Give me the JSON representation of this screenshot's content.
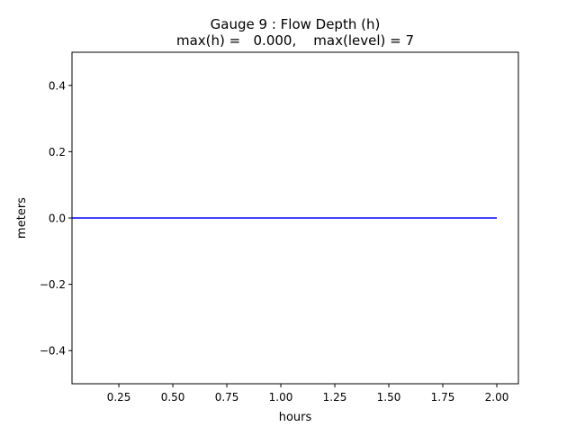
{
  "chart_data": {
    "type": "line",
    "title": "Gauge 9 : Flow Depth (h)",
    "subtitle": "max(h) =   0.000,    max(level) = 7",
    "xlabel": "hours",
    "ylabel": "meters",
    "xlim": [
      0.033,
      2.1
    ],
    "ylim": [
      -0.5,
      0.5
    ],
    "xticks": [
      0.25,
      0.5,
      0.75,
      1.0,
      1.25,
      1.5,
      1.75,
      2.0
    ],
    "xtick_labels": [
      "0.25",
      "0.50",
      "0.75",
      "1.00",
      "1.25",
      "1.50",
      "1.75",
      "2.00"
    ],
    "yticks": [
      -0.4,
      -0.2,
      0.0,
      0.2,
      0.4
    ],
    "ytick_labels": [
      "−0.4",
      "−0.2",
      "0.0",
      "0.2",
      "0.4"
    ],
    "grid": false,
    "series": [
      {
        "color": "#0000ff",
        "x": [
          0.033,
          2.0
        ],
        "y": [
          0.0,
          0.0
        ]
      }
    ]
  }
}
